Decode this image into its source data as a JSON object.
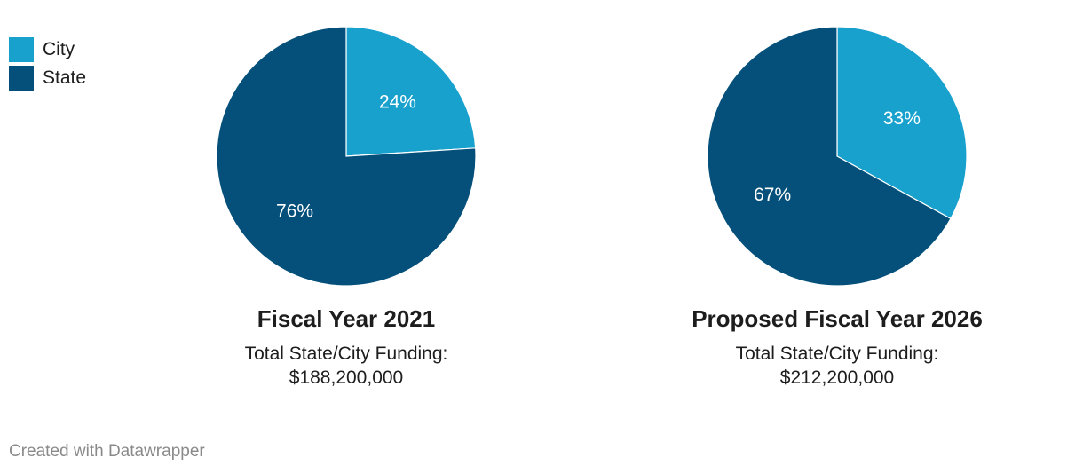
{
  "legend": [
    {
      "label": "City",
      "color": "#18a1cd"
    },
    {
      "label": "State",
      "color": "#04507a"
    }
  ],
  "chart_data": [
    {
      "type": "pie",
      "title": "Fiscal Year 2021",
      "subtitle_line1": "Total State/City Funding:",
      "subtitle_line2": "$188,200,000",
      "categories": [
        "City",
        "State"
      ],
      "values": [
        24,
        76
      ],
      "value_labels": [
        "24%",
        "76%"
      ],
      "colors": [
        "#18a1cd",
        "#04507a"
      ]
    },
    {
      "type": "pie",
      "title": "Proposed Fiscal Year 2026",
      "subtitle_line1": "Total State/City Funding:",
      "subtitle_line2": "$212,200,000",
      "categories": [
        "City",
        "State"
      ],
      "values": [
        33,
        67
      ],
      "value_labels": [
        "33%",
        "67%"
      ],
      "colors": [
        "#18a1cd",
        "#04507a"
      ]
    }
  ],
  "footer": "Created with Datawrapper"
}
